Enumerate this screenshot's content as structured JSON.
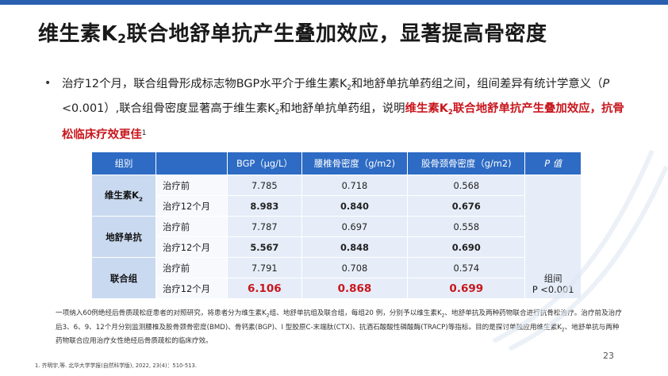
{
  "title": {
    "pre": "维生素K",
    "sub": "2",
    "post": "联合地舒单抗产生叠加效应，显著提高骨密度"
  },
  "bullet": {
    "t1": "治疗12个月，联合组骨形成标志物BGP水平介于维生素K",
    "t1sub": "2",
    "t2": "和地舒单抗单药组之间，组间差异有统计学意义（",
    "t2i": "P",
    "t3": " <0.001）,联合组骨密度显著高于维生素K",
    "t3sub": "2",
    "t4": "和地舒单抗单药组，说明",
    "red1": "维生素K",
    "red1sub": "2",
    "red2": "联合地舒单抗产生叠加效应，抗骨松临床疗效更佳",
    "ref": "1"
  },
  "table": {
    "headers": [
      "组别",
      "",
      "BGP（μg/L）",
      "腰椎骨密度（g/m2)",
      "股骨颈骨密度（g/m2)",
      "P 值"
    ],
    "groups": [
      {
        "name": "维生素K",
        "sub": "2",
        "rows": [
          {
            "stage": "治疗前",
            "bgp": "7.785",
            "lumbar": "0.718",
            "femur": "0.568"
          },
          {
            "stage": "治疗12个月",
            "bgp": "8.983",
            "lumbar": "0.840",
            "femur": "0.676"
          }
        ]
      },
      {
        "name": "地舒单抗",
        "sub": "",
        "rows": [
          {
            "stage": "治疗前",
            "bgp": "7.787",
            "lumbar": "0.697",
            "femur": "0.558"
          },
          {
            "stage": "治疗12个月",
            "bgp": "5.567",
            "lumbar": "0.848",
            "femur": "0.690"
          }
        ]
      },
      {
        "name": "联合组",
        "sub": "",
        "rows": [
          {
            "stage": "治疗前",
            "bgp": "7.791",
            "lumbar": "0.708",
            "femur": "0.574"
          },
          {
            "stage": "治疗12个月",
            "bgp": "6.106",
            "lumbar": "0.868",
            "femur": "0.699"
          }
        ]
      }
    ],
    "p_label": "组间",
    "p_value": "P <0.001"
  },
  "note": {
    "a": "一项纳入60例绝经后骨质疏松症患者的对照研究，将患者分为维生素K",
    "asub": "2",
    "b": "组、地舒单抗组及联合组，每组20 例，分别予以维生素K",
    "bsub": "2",
    "c": "、地舒单抗及两种药物联合进行抗骨松治疗。治疗前及治疗后3、6、9、12个月分别监测腰椎及股骨颈骨密度(BMD)、骨钙素(BGP)、I 型胶原C-末端肽(CTX)、抗酒石酸酸性磷酸酶(TRACP)等指标。目的是探讨单独应用维生素K",
    "csub": "2",
    "d": "、地舒单抗与两种药物联合应用治疗女性绝经后骨质疏松的临床疗效。"
  },
  "footnote": "1. 齐明宇,等. 北华大学学报(自然科学版), 2022, 23(4)：510-513.",
  "page_number": "23",
  "colors": {
    "accent": "#2d6bc4",
    "highlight": "#c8171e"
  }
}
